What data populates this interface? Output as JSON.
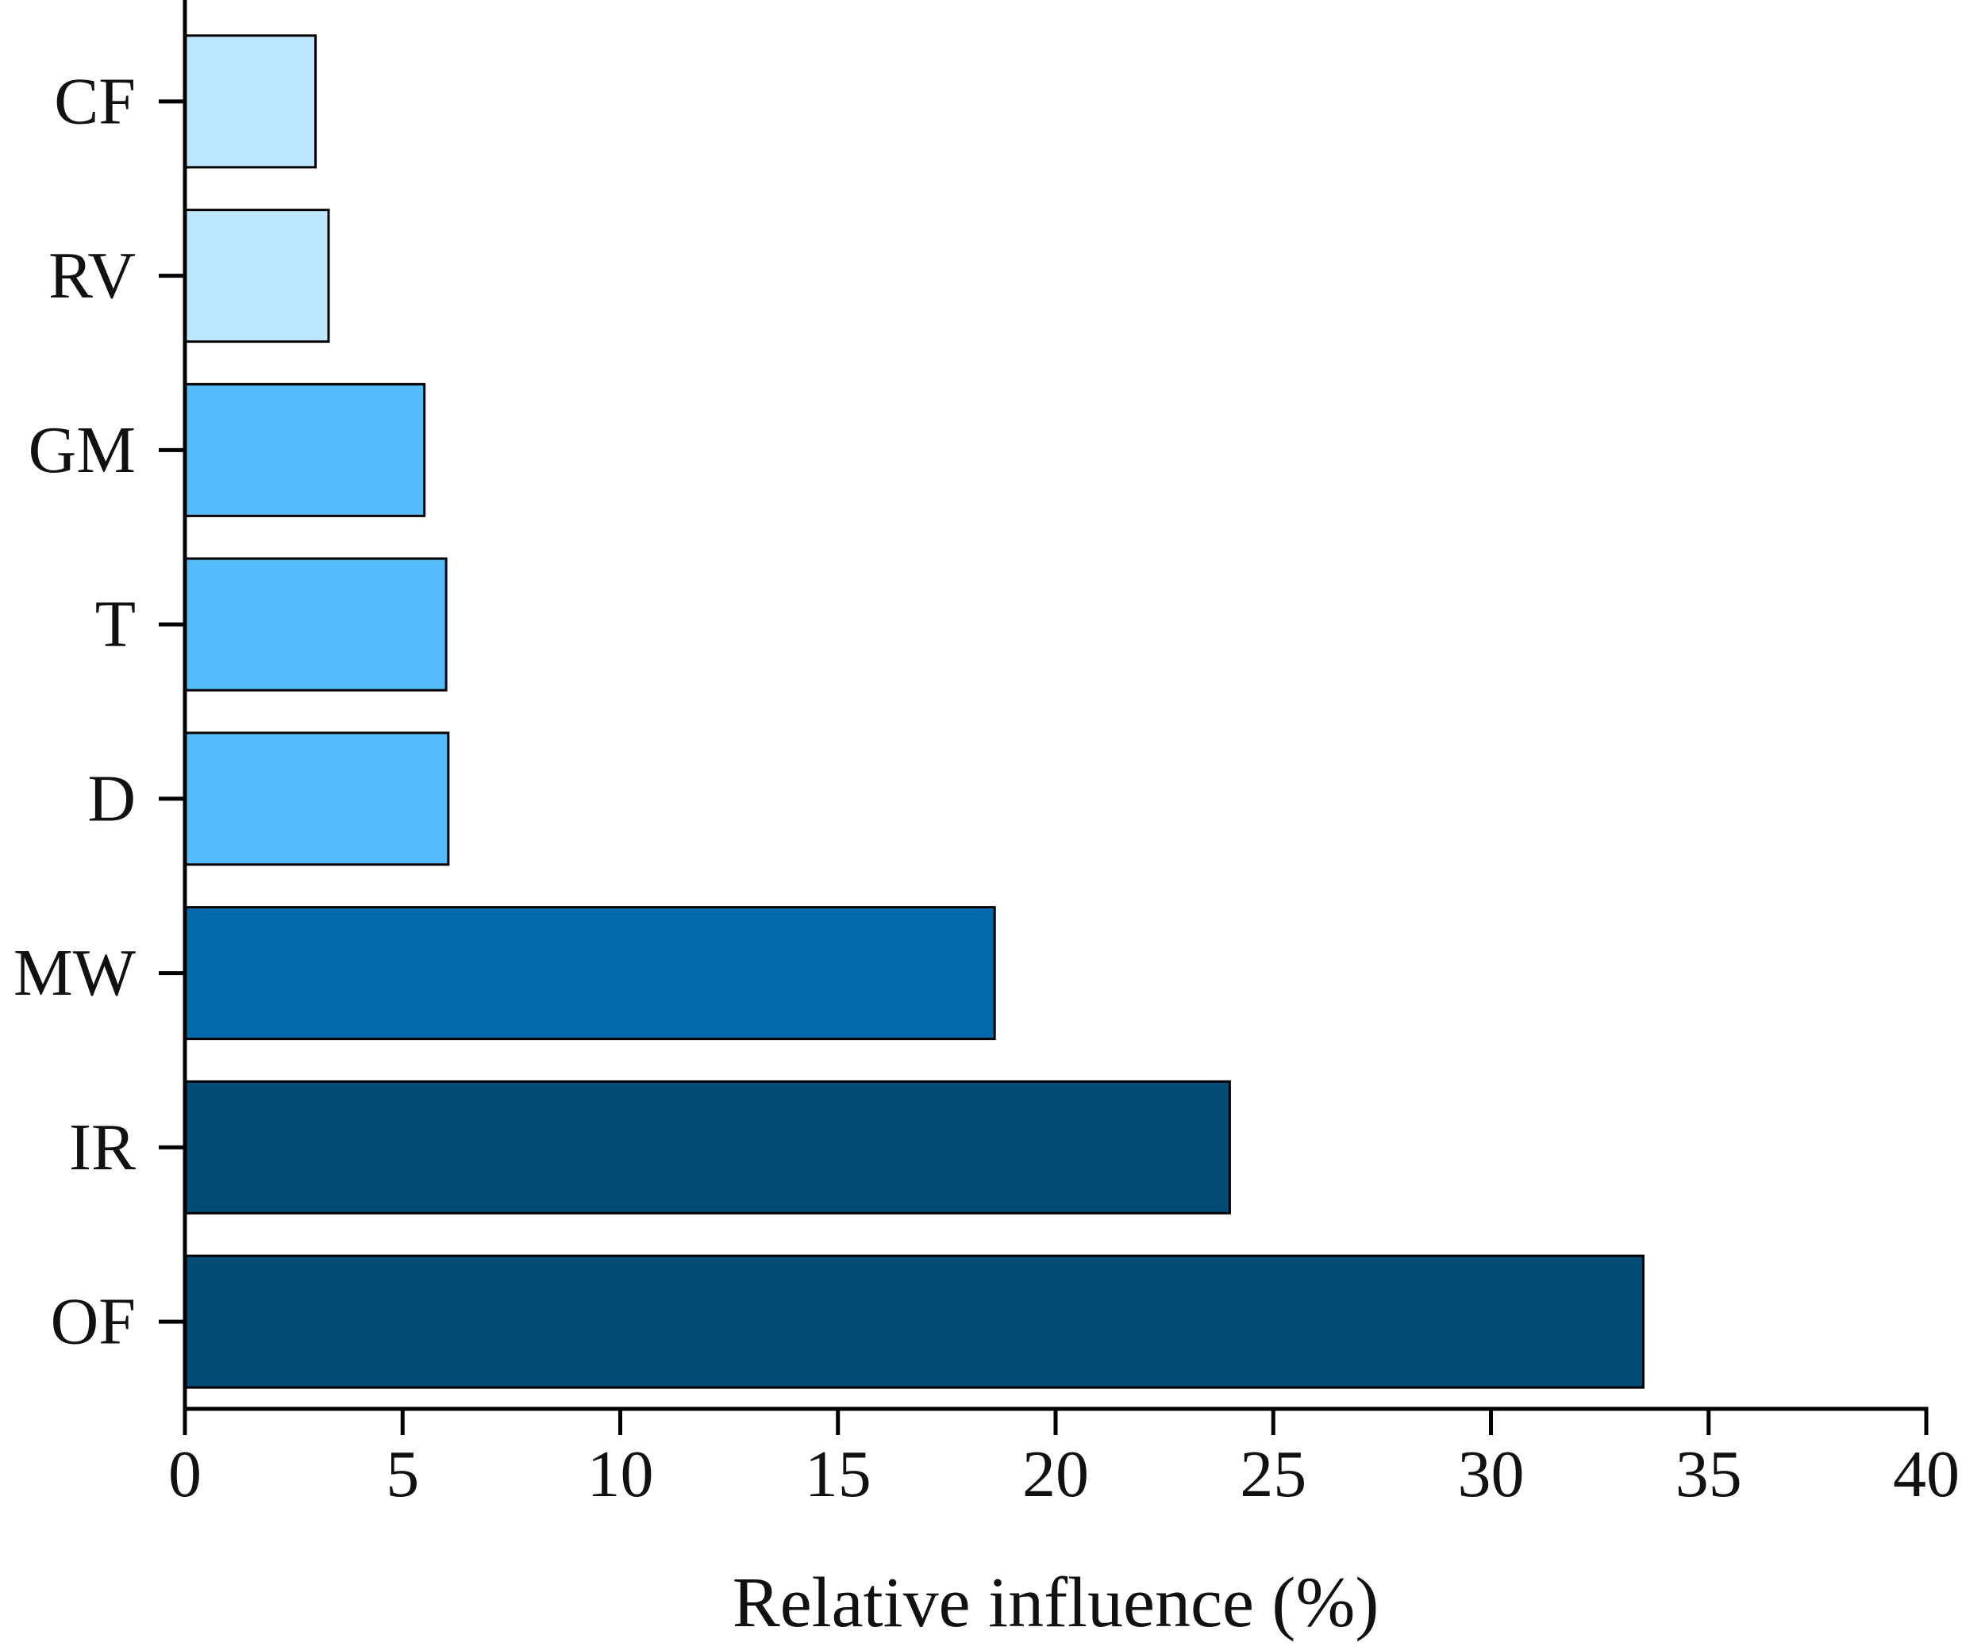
{
  "chart_data": {
    "type": "bar",
    "orientation": "horizontal",
    "categories": [
      "CF",
      "RV",
      "GM",
      "T",
      "D",
      "MW",
      "IR",
      "OF"
    ],
    "values": [
      3.0,
      3.3,
      5.5,
      6.0,
      6.05,
      18.6,
      24.0,
      33.5
    ],
    "bar_colors": [
      "#bde7fd",
      "#bde7fd",
      "#55bcfc",
      "#55bcfc",
      "#55bcfc",
      "#036aab",
      "#024b77",
      "#024b77"
    ],
    "title": "",
    "xlabel": "Relative influence (%)",
    "ylabel": "",
    "xlim": [
      0,
      40
    ],
    "xticks": [
      0,
      5,
      10,
      15,
      20,
      25,
      30,
      35,
      40
    ],
    "xtick_labels": [
      "0",
      "5",
      "10",
      "15",
      "20",
      "25",
      "30",
      "35",
      "40"
    ],
    "grid": false,
    "legend": "none"
  }
}
